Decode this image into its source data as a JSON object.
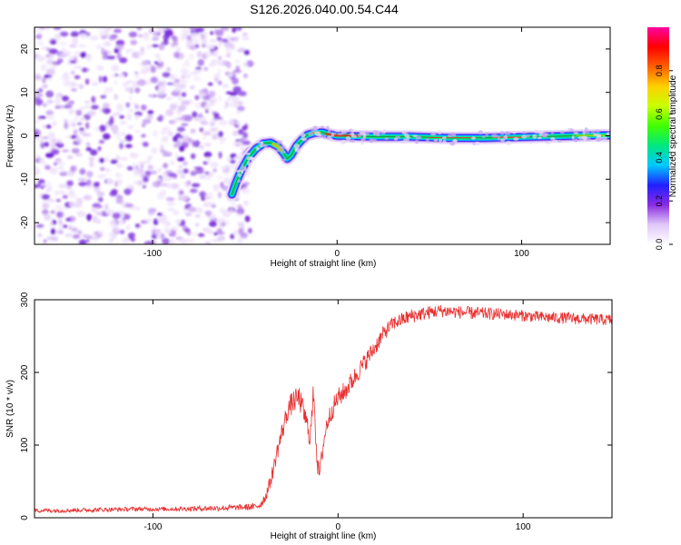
{
  "title": "S126.2026.040.00.54.C44",
  "colors": {
    "trace": "#e83030",
    "axis": "#000000"
  },
  "chart_data": [
    {
      "type": "heatmap",
      "name": "spectrogram",
      "xlabel": "Height of straight line (km)",
      "ylabel": "Frequency (Hz)",
      "xlim": [
        -164,
        148
      ],
      "ylim": [
        -25,
        25
      ],
      "xticks": [
        -100,
        0,
        100
      ],
      "yticks": [
        -20,
        -10,
        0,
        10,
        20
      ],
      "xtick_labels": [
        "-100",
        "0",
        "100"
      ],
      "ytick_labels": [
        "-20",
        "-10",
        "0",
        "10",
        "20"
      ],
      "noise_region_x": [
        -164,
        -54
      ],
      "ridge_frequency": [
        [
          -57,
          -13.5
        ],
        [
          -55,
          -11
        ],
        [
          -52,
          -8
        ],
        [
          -48,
          -5
        ],
        [
          -44,
          -3
        ],
        [
          -40,
          -1.8
        ],
        [
          -36,
          -1.6
        ],
        [
          -32,
          -2.5
        ],
        [
          -29,
          -4
        ],
        [
          -27,
          -5.3
        ],
        [
          -25,
          -4.5
        ],
        [
          -22,
          -2.3
        ],
        [
          -19,
          -0.9
        ],
        [
          -16,
          0.2
        ],
        [
          -12,
          0.7
        ],
        [
          -8,
          0.8
        ],
        [
          -4,
          0.3
        ],
        [
          0,
          0
        ],
        [
          20,
          -0.2
        ],
        [
          40,
          -0.2
        ],
        [
          60,
          -0.5
        ],
        [
          80,
          -0.5
        ],
        [
          100,
          -0.3
        ],
        [
          120,
          -0.1
        ],
        [
          140,
          0.1
        ],
        [
          148,
          0.1
        ]
      ],
      "colorbar": {
        "label": "Normalized spectral amplitude",
        "range": [
          0,
          1
        ],
        "ticks": [
          0.0,
          0.2,
          0.4,
          0.6,
          0.8
        ],
        "tick_labels": [
          "0.0",
          "0.2",
          "0.4",
          "0.6",
          "0.8"
        ],
        "colors": [
          "#ffffff",
          "#e0c8f8",
          "#8a2be2",
          "#2020ff",
          "#00c8ff",
          "#00e880",
          "#40ff00",
          "#c8ff00",
          "#ffd000",
          "#ff6000",
          "#ff0000",
          "#ff00a0"
        ]
      }
    },
    {
      "type": "line",
      "name": "snr",
      "xlabel": "Height of straight line (km)",
      "ylabel": "SNR (10 * v/v)",
      "xlim": [
        -164,
        148
      ],
      "ylim": [
        0,
        300
      ],
      "xticks": [
        -100,
        0,
        100
      ],
      "yticks": [
        0,
        100,
        200,
        300
      ],
      "xtick_labels": [
        "-100",
        "0",
        "100"
      ],
      "ytick_labels": [
        "0",
        "100",
        "200",
        "300"
      ],
      "series": [
        {
          "name": "SNR",
          "x": [
            -164,
            -150,
            -130,
            -110,
            -90,
            -70,
            -55,
            -45,
            -42,
            -39,
            -36,
            -33,
            -30,
            -27,
            -24,
            -21,
            -18,
            -15,
            -13,
            -12,
            -11,
            -10,
            -8,
            -6,
            -3,
            0,
            4,
            8,
            12,
            16,
            20,
            25,
            30,
            40,
            55,
            70,
            90,
            110,
            130,
            148
          ],
          "y": [
            10,
            10,
            11,
            12,
            12,
            13,
            14,
            15,
            18,
            30,
            55,
            90,
            120,
            150,
            160,
            165,
            140,
            110,
            180,
            110,
            70,
            60,
            100,
            130,
            150,
            165,
            175,
            190,
            205,
            220,
            235,
            255,
            268,
            278,
            285,
            282,
            280,
            276,
            274,
            272
          ],
          "noise_amplitude": [
            3,
            3,
            3,
            3,
            3,
            4,
            4,
            5,
            6,
            8,
            10,
            12,
            14,
            15,
            16,
            16,
            16,
            16,
            20,
            18,
            12,
            12,
            14,
            14,
            14,
            14,
            14,
            14,
            13,
            13,
            12,
            11,
            10,
            10,
            9,
            9,
            8,
            8,
            8,
            8
          ]
        }
      ]
    }
  ]
}
